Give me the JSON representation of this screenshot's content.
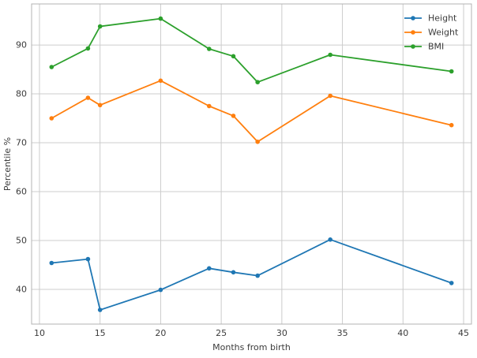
{
  "chart_data": {
    "type": "line",
    "title": "",
    "xlabel": "Months from birth",
    "ylabel": "Percentile %",
    "x": [
      11,
      14,
      15,
      20,
      24,
      26,
      28,
      34,
      44
    ],
    "series": [
      {
        "name": "Height",
        "color": "#1f77b4",
        "values": [
          45.4,
          46.2,
          35.8,
          39.9,
          44.3,
          43.5,
          42.8,
          50.2,
          41.3
        ]
      },
      {
        "name": "Weight",
        "color": "#ff7f0e",
        "values": [
          75.0,
          79.2,
          77.7,
          82.7,
          77.5,
          75.5,
          70.2,
          79.6,
          73.6
        ]
      },
      {
        "name": "BMI",
        "color": "#2ca02c",
        "values": [
          85.5,
          89.3,
          93.8,
          95.4,
          89.2,
          87.7,
          82.4,
          88.0,
          84.6
        ]
      }
    ],
    "xticks": [
      10,
      15,
      20,
      25,
      30,
      35,
      40,
      45
    ],
    "yticks": [
      40,
      50,
      60,
      70,
      80,
      90
    ],
    "xlim": [
      9.35,
      45.65
    ],
    "ylim": [
      32.9,
      98.4
    ],
    "grid": true,
    "legend_position": "upper right",
    "legend_frame": false,
    "marker": "circle",
    "colors": {
      "grid": "#cccccc",
      "spine": "#b3b3b3",
      "text": "#3c3c3c",
      "background": "#ffffff"
    }
  }
}
